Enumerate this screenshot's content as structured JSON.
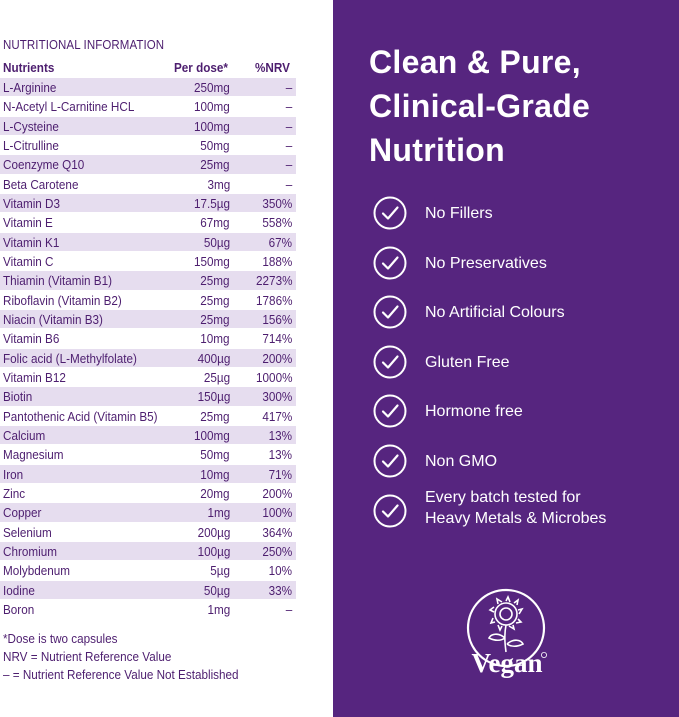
{
  "nutrition": {
    "title": "NUTRITIONAL INFORMATION",
    "headers": {
      "nutrient": "Nutrients",
      "dose": "Per dose*",
      "nrv": "%NRV"
    },
    "rows": [
      {
        "name": "L-Arginine",
        "dose": "250mg",
        "nrv": "–"
      },
      {
        "name": "N-Acetyl L-Carnitine HCL",
        "dose": "100mg",
        "nrv": "–"
      },
      {
        "name": "L-Cysteine",
        "dose": "100mg",
        "nrv": "–"
      },
      {
        "name": "L-Citrulline",
        "dose": "50mg",
        "nrv": "–"
      },
      {
        "name": "Coenzyme Q10",
        "dose": "25mg",
        "nrv": "–"
      },
      {
        "name": "Beta Carotene",
        "dose": "3mg",
        "nrv": "–"
      },
      {
        "name": "Vitamin D3",
        "dose": "17.5µg",
        "nrv": "350%"
      },
      {
        "name": "Vitamin E",
        "dose": "67mg",
        "nrv": "558%"
      },
      {
        "name": "Vitamin K1",
        "dose": "50µg",
        "nrv": "67%"
      },
      {
        "name": "Vitamin C",
        "dose": "150mg",
        "nrv": "188%"
      },
      {
        "name": "Thiamin (Vitamin B1)",
        "dose": "25mg",
        "nrv": "2273%"
      },
      {
        "name": "Riboflavin (Vitamin B2)",
        "dose": "25mg",
        "nrv": "1786%"
      },
      {
        "name": "Niacin (Vitamin B3)",
        "dose": "25mg",
        "nrv": "156%"
      },
      {
        "name": "Vitamin B6",
        "dose": "10mg",
        "nrv": "714%"
      },
      {
        "name": "Folic acid (L-Methylfolate)",
        "dose": "400µg",
        "nrv": "200%"
      },
      {
        "name": "Vitamin B12",
        "dose": "25µg",
        "nrv": "1000%"
      },
      {
        "name": "Biotin",
        "dose": "150µg",
        "nrv": "300%"
      },
      {
        "name": "Pantothenic Acid (Vitamin B5)",
        "dose": "25mg",
        "nrv": "417%"
      },
      {
        "name": "Calcium",
        "dose": "100mg",
        "nrv": "13%"
      },
      {
        "name": "Magnesium",
        "dose": "50mg",
        "nrv": "13%"
      },
      {
        "name": "Iron",
        "dose": "10mg",
        "nrv": "71%"
      },
      {
        "name": "Zinc",
        "dose": "20mg",
        "nrv": "200%"
      },
      {
        "name": "Copper",
        "dose": "1mg",
        "nrv": "100%"
      },
      {
        "name": "Selenium",
        "dose": "200µg",
        "nrv": "364%"
      },
      {
        "name": "Chromium",
        "dose": "100µg",
        "nrv": "250%"
      },
      {
        "name": "Molybdenum",
        "dose": "5µg",
        "nrv": "10%"
      },
      {
        "name": "Iodine",
        "dose": "50µg",
        "nrv": "33%"
      },
      {
        "name": "Boron",
        "dose": "1mg",
        "nrv": "–"
      }
    ],
    "notes": [
      "*Dose is two capsules",
      "NRV = Nutrient Reference Value",
      "– = Nutrient Reference Value Not Established"
    ]
  },
  "promo": {
    "headline_lines": [
      "Clean & Pure,",
      "Clinical-Grade",
      "Nutrition"
    ],
    "features": [
      {
        "icon": "check-circle-icon",
        "lines": [
          "No Fillers"
        ]
      },
      {
        "icon": "check-circle-icon",
        "lines": [
          "No Preservatives"
        ]
      },
      {
        "icon": "check-circle-icon",
        "lines": [
          "No Artificial Colours"
        ]
      },
      {
        "icon": "check-circle-icon",
        "lines": [
          "Gluten Free"
        ]
      },
      {
        "icon": "check-circle-icon",
        "lines": [
          "Hormone free"
        ]
      },
      {
        "icon": "check-circle-icon",
        "lines": [
          "Non GMO"
        ]
      },
      {
        "icon": "check-circle-icon",
        "lines": [
          "Every batch tested for",
          "Heavy Metals & Microbes"
        ]
      }
    ],
    "vegan_logo_text": "Vegan"
  },
  "colors": {
    "purple": "#56257f",
    "text_purple": "#4d1e6f",
    "row_tint": "#e6ddef",
    "white": "#ffffff"
  }
}
